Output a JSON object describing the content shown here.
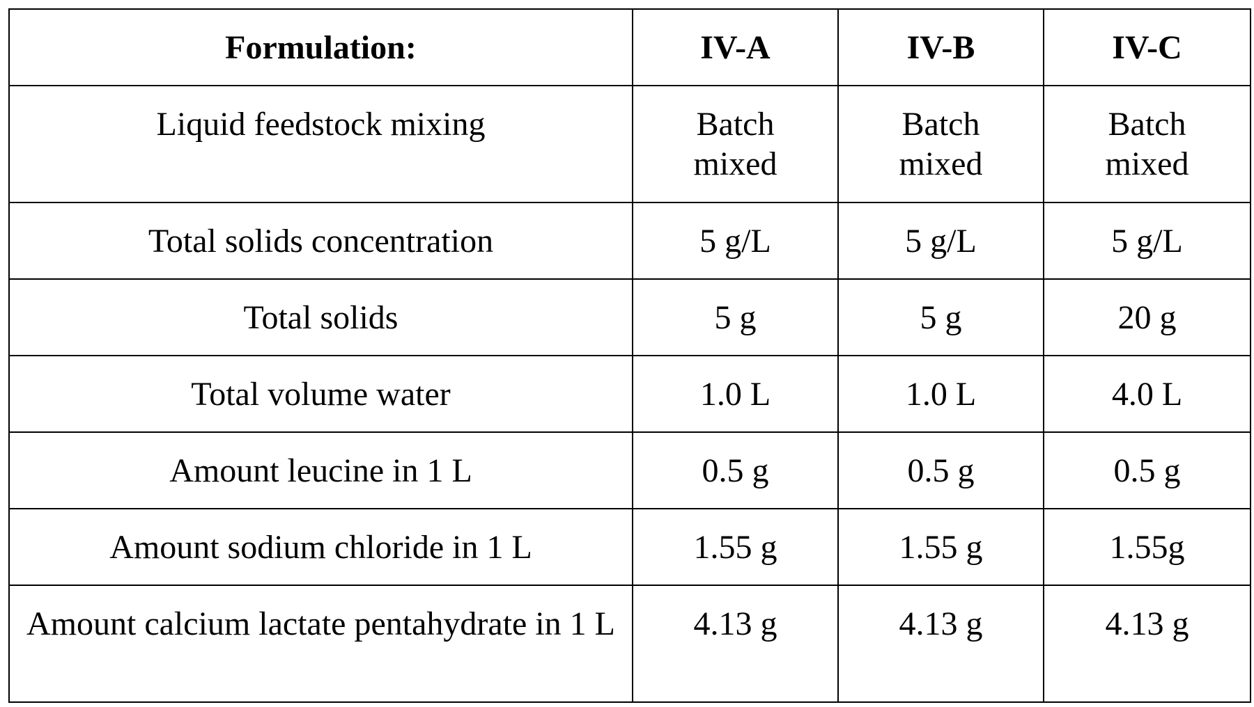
{
  "table": {
    "header": {
      "label": "Formulation:",
      "columns": [
        "IV-A",
        "IV-B",
        "IV-C"
      ]
    },
    "rows": [
      {
        "label": "Liquid feedstock mixing",
        "values": [
          "Batch mixed",
          "Batch mixed",
          "Batch mixed"
        ]
      },
      {
        "label": "Total solids concentration",
        "values": [
          "5 g/L",
          "5 g/L",
          "5 g/L"
        ]
      },
      {
        "label": "Total solids",
        "values": [
          "5 g",
          "5 g",
          "20 g"
        ]
      },
      {
        "label": "Total volume water",
        "values": [
          "1.0 L",
          "1.0 L",
          "4.0 L"
        ]
      },
      {
        "label": "Amount leucine in 1 L",
        "values": [
          "0.5 g",
          "0.5 g",
          "0.5 g"
        ]
      },
      {
        "label": "Amount sodium chloride in 1 L",
        "values": [
          "1.55 g",
          "1.55 g",
          "1.55g"
        ]
      },
      {
        "label": "Amount calcium lactate pentahydrate in 1 L",
        "values": [
          "4.13 g",
          "4.13 g",
          "4.13 g"
        ]
      }
    ]
  }
}
